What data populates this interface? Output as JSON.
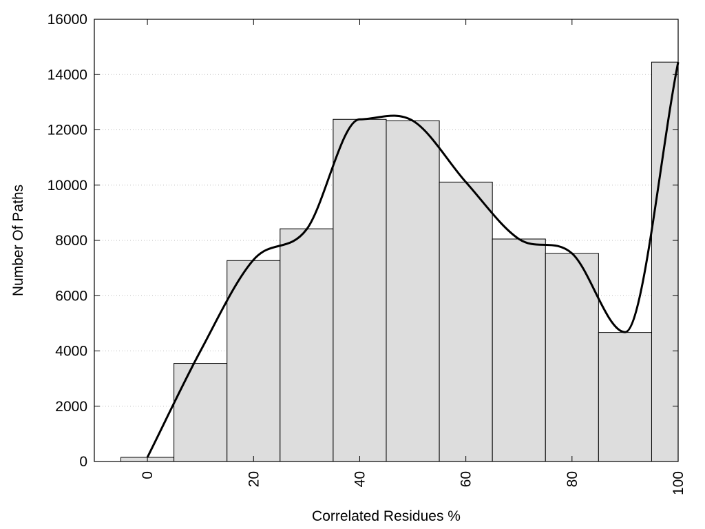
{
  "chart_data": {
    "type": "bar",
    "title": "",
    "xlabel": "Correlated Residues %",
    "ylabel": "Number Of Paths",
    "x": [
      0,
      10,
      20,
      30,
      40,
      50,
      60,
      70,
      80,
      90,
      100
    ],
    "values": [
      150,
      3550,
      7270,
      8420,
      12380,
      12330,
      10110,
      8050,
      7530,
      4670,
      14450
    ],
    "bin_width": 10,
    "xlim": [
      -10,
      100
    ],
    "ylim": [
      0,
      16000
    ],
    "xticks": [
      0,
      20,
      40,
      60,
      80,
      100
    ],
    "xtick_labels": [
      "0",
      "20",
      "40",
      "60",
      "80",
      "100"
    ],
    "yticks": [
      0,
      2000,
      4000,
      6000,
      8000,
      10000,
      12000,
      14000,
      16000
    ],
    "ytick_labels": [
      "0",
      "2000",
      "4000",
      "6000",
      "8000",
      "10000",
      "12000",
      "14000",
      "16000"
    ],
    "grid": "horizontal dotted",
    "bar_color": "#dddddd",
    "curve": {
      "type": "line",
      "smooth": true,
      "x": [
        0,
        10,
        20,
        30,
        40,
        50,
        60,
        70,
        80,
        90,
        100
      ],
      "y": [
        150,
        4000,
        7300,
        8400,
        12380,
        12330,
        10110,
        8050,
        7530,
        4680,
        14450
      ],
      "color": "#000000"
    }
  }
}
